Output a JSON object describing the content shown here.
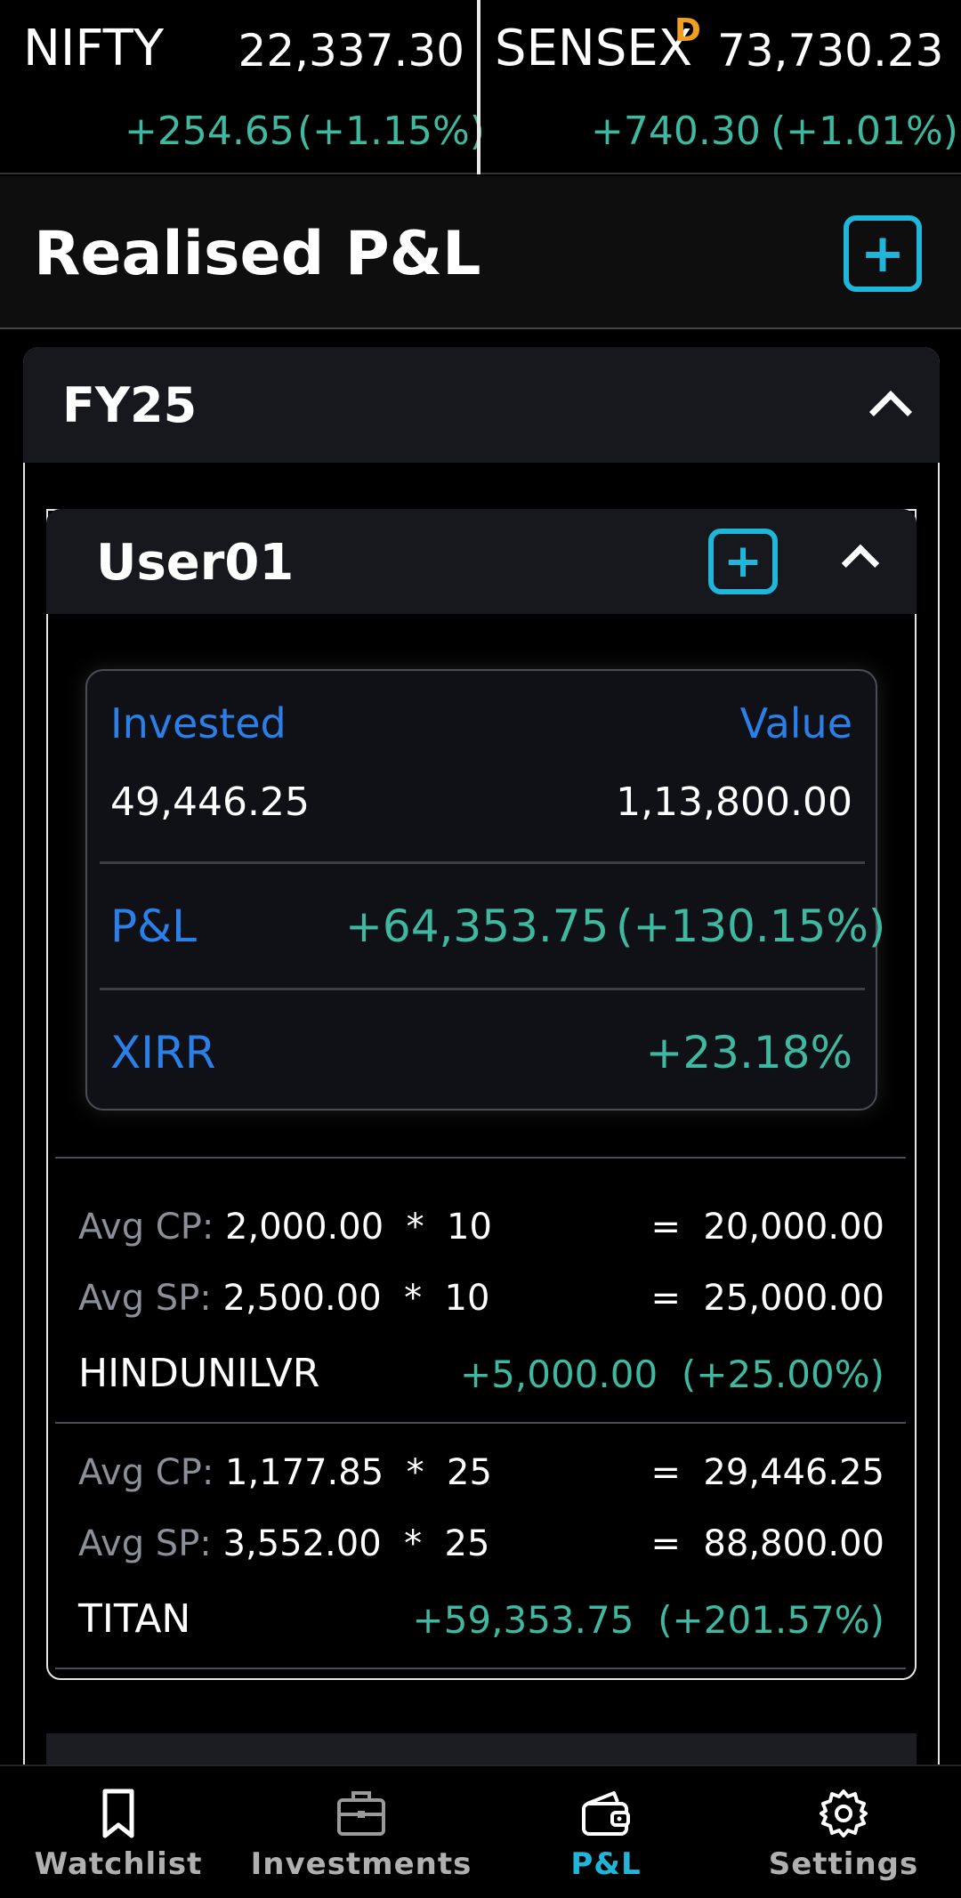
{
  "ticker": {
    "nifty": {
      "name": "NIFTY",
      "value": "22,337.30",
      "change": "+254.65",
      "pct": "(+1.15%)"
    },
    "sensex": {
      "name": "SENSEX",
      "badge": "D",
      "value": "73,730.23",
      "change": "+740.30",
      "pct": "(+1.01%)"
    }
  },
  "header": {
    "title": "Realised P&L"
  },
  "fy": {
    "title": "FY25"
  },
  "user": {
    "name": "User01",
    "summary": {
      "invested_label": "Invested",
      "value_label": "Value",
      "invested": "49,446.25",
      "value": "1,13,800.00",
      "pnl_label": "P&L",
      "pnl": "+64,353.75",
      "pnl_pct": "(+130.15%)",
      "xirr_label": "XIRR",
      "xirr": "+23.18%"
    },
    "holdings": [
      {
        "cp_label": "Avg CP:",
        "cp": "2,000.00",
        "cp_qty": "10",
        "cp_total": "20,000.00",
        "sp_label": "Avg SP:",
        "sp": "2,500.00",
        "sp_qty": "10",
        "sp_total": "25,000.00",
        "symbol": "HINDUNILVR",
        "pnl": "+5,000.00",
        "pnl_pct": "(+25.00%)"
      },
      {
        "cp_label": "Avg CP:",
        "cp": "1,177.85",
        "cp_qty": "25",
        "cp_total": "29,446.25",
        "sp_label": "Avg SP:",
        "sp": "3,552.00",
        "sp_qty": "25",
        "sp_total": "88,800.00",
        "symbol": "TITAN",
        "pnl": "+59,353.75",
        "pnl_pct": "(+201.57%)"
      }
    ]
  },
  "nav": {
    "items": [
      {
        "label": "Watchlist",
        "icon": "bookmark-icon"
      },
      {
        "label": "Investments",
        "icon": "briefcase-icon"
      },
      {
        "label": "P&L",
        "icon": "wallet-icon",
        "active": true
      },
      {
        "label": "Settings",
        "icon": "gear-icon"
      }
    ]
  },
  "colors": {
    "accent": "#1fb6d9",
    "gain": "#3fb8a0",
    "label_blue": "#2b7fe8",
    "badge": "#f0a020"
  }
}
